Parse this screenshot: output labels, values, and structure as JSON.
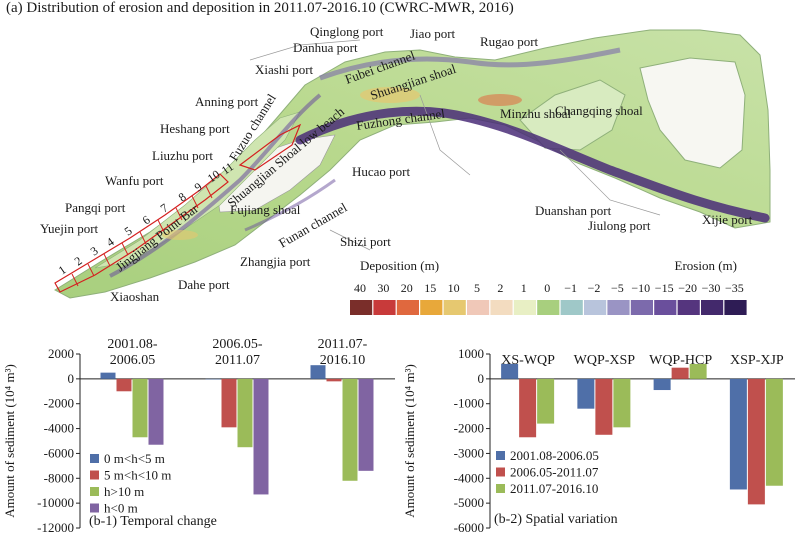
{
  "figure": {
    "title": "(a) Distribution of erosion and deposition in 2011.07-2016.10 (CWRC-MWR, 2016)"
  },
  "map": {
    "place_labels": [
      "Qinglong port",
      "Jiao port",
      "Rugao port",
      "Danhua port",
      "Xiashi port",
      "Fubei channel",
      "Shuangjian shoal",
      "Anning port",
      "Minzhu shoal",
      "Changqing shoal",
      "Fuzuo channel",
      "Shuangjian Shoal low beach",
      "Fuzhong channel",
      "Heshang port",
      "Liuzhu port",
      "Hucao port",
      "Wanfu port",
      "Fujiang shoal",
      "Funan channel",
      "Pangqi port",
      "Jingjiang Point Bar",
      "Duanshan port",
      "Yuejin port",
      "Shizi port",
      "Jiulong port",
      "Xijie port",
      "Zhangjia port",
      "Xiaoshan",
      "Dahe port"
    ],
    "section_numbers": [
      "1",
      "2",
      "3",
      "4",
      "5",
      "6",
      "7",
      "8",
      "9",
      "10",
      "11"
    ],
    "legend": {
      "deposition_label": "Deposition (m)",
      "erosion_label": "Erosion (m)",
      "values": [
        "40",
        "30",
        "20",
        "15",
        "10",
        "5",
        "2",
        "1",
        "0",
        "−1",
        "−2",
        "−5",
        "−10",
        "−15",
        "−20",
        "−30",
        "−35"
      ],
      "colors": [
        "#7a2e2a",
        "#c83a3a",
        "#e0683e",
        "#e8a83a",
        "#e6c870",
        "#f0c8b8",
        "#f3dcc0",
        "#e8efc4",
        "#a8cf7e",
        "#9fc8c8",
        "#b8c4dc",
        "#9a94c4",
        "#7c6aac",
        "#6a4f9c",
        "#55357e",
        "#43296c",
        "#2e1c55"
      ]
    }
  },
  "chart_data": [
    {
      "type": "bar",
      "panel_label": "(b-1) Temporal change",
      "ylabel": "Amount of sediment (10⁴ m³)",
      "ylim": [
        -12000,
        2000
      ],
      "yticks": [
        2000,
        0,
        -2000,
        -4000,
        -6000,
        -8000,
        -10000,
        -12000
      ],
      "categories": [
        "2001.08-\n2006.05",
        "2006.05-\n2011.07",
        "2011.07-\n2016.10"
      ],
      "legend_position": "lower-left",
      "series": [
        {
          "name": "0 m<h<5 m",
          "color": "#4f6fa8",
          "values": [
            500,
            0,
            1100
          ]
        },
        {
          "name": "5 m<h<10 m",
          "color": "#c0504d",
          "values": [
            -1000,
            -3900,
            -200
          ]
        },
        {
          "name": "h>10 m",
          "color": "#9bbb59",
          "values": [
            -4700,
            -5500,
            -8200
          ]
        },
        {
          "name": "h<0 m",
          "color": "#8064a2",
          "values": [
            -5300,
            -9300,
            -7400
          ]
        }
      ]
    },
    {
      "type": "bar",
      "panel_label": "(b-2) Spatial variation",
      "ylabel": "Amount of sediment (10⁴ m³)",
      "ylim": [
        -6000,
        1000
      ],
      "yticks": [
        1000,
        0,
        -1000,
        -2000,
        -3000,
        -4000,
        -5000,
        -6000
      ],
      "categories": [
        "XS-WQP",
        "WQP-XSP",
        "WQP-HCP",
        "XSP-XJP"
      ],
      "legend_position": "lower-left",
      "series": [
        {
          "name": "2001.08-2006.05",
          "color": "#4f6fa8",
          "values": [
            600,
            -1200,
            -450,
            -4450
          ]
        },
        {
          "name": "2006.05-2011.07",
          "color": "#c0504d",
          "values": [
            -2350,
            -2250,
            450,
            -5050
          ]
        },
        {
          "name": "2011.07-2016.10",
          "color": "#9bbb59",
          "values": [
            -1800,
            -1950,
            600,
            -4300
          ]
        }
      ]
    }
  ]
}
